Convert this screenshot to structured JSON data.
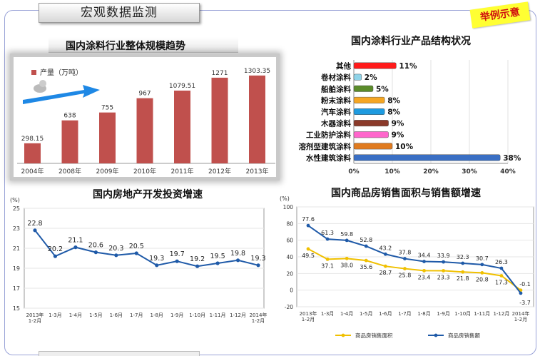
{
  "header": {
    "title": "宏观数据监测",
    "example_tag": "举例示意"
  },
  "colors": {
    "bar_red": "#c0504d",
    "line_blue": "#1f5aa8",
    "line_yellow": "#f0c000",
    "arrow_blue": "#1e88e5"
  },
  "chart_data": [
    {
      "type": "bar",
      "title": "国内涂料行业整体规模趋势",
      "legend": "产量（万吨）",
      "categories": [
        "2004年",
        "2008年",
        "2009年",
        "2010年",
        "2011年",
        "2012年",
        "2013年"
      ],
      "values": [
        298.15,
        638,
        755,
        967,
        1079.51,
        1271,
        1303.35
      ],
      "value_labels": [
        "298.15",
        "638",
        "755",
        "967",
        "1079.51",
        "1271",
        "1303.35"
      ],
      "ylim": [
        0,
        1450
      ]
    },
    {
      "type": "bar",
      "orientation": "horizontal",
      "title": "国内涂料行业产品结构状况",
      "categories": [
        "其他",
        "卷材涂料",
        "船舶涂料",
        "粉末涂料",
        "汽车涂料",
        "木器涂料",
        "工业防护涂料",
        "溶剂型建筑涂料",
        "水性建筑涂料"
      ],
      "values": [
        11,
        2,
        5,
        8,
        8,
        9,
        9,
        10,
        38
      ],
      "value_labels": [
        "11%",
        "2%",
        "5%",
        "8%",
        "8%",
        "9%",
        "9%",
        "10%",
        "38%"
      ],
      "colors": [
        "#ff1a1a",
        "#8fd3e8",
        "#5b8c2a",
        "#f5a623",
        "#1e9be0",
        "#8b3a2a",
        "#ff66cc",
        "#e07b20",
        "#3a6fc4"
      ],
      "xlim": [
        0,
        40
      ],
      "xticks": [
        "0%",
        "10%",
        "20%",
        "30%",
        "40%"
      ]
    },
    {
      "type": "line",
      "title": "国内房地产开发投资增速",
      "unit": "(%)",
      "categories": [
        "2013年\n1-2月",
        "1-3月",
        "1-4月",
        "1-5月",
        "1-6月",
        "1-7月",
        "1-8月",
        "1-9月",
        "1-10月",
        "1-11月",
        "1-12月",
        "2014年\n1-2月"
      ],
      "values": [
        22.8,
        20.2,
        21.1,
        20.6,
        20.3,
        20.5,
        19.3,
        19.7,
        19.2,
        19.5,
        19.8,
        19.3
      ],
      "value_labels": [
        "22.8",
        "20.2",
        "21.1",
        "20.6",
        "20.3",
        "20.5",
        "19.3",
        "19.7",
        "19.2",
        "19.5",
        "19.8",
        "19.3"
      ],
      "ylim": [
        15,
        25
      ],
      "yticks": [
        "15",
        "17",
        "19",
        "21",
        "23",
        "25"
      ]
    },
    {
      "type": "line",
      "title": "国内商品房销售面积与销售额增速",
      "unit": "(%)",
      "categories": [
        "2013年\n1-2月",
        "1-3月",
        "1-4月",
        "1-5月",
        "1-6月",
        "1-7月",
        "1-8月",
        "1-9月",
        "1-10月",
        "1-11月",
        "1-12月",
        "2014年\n1-2月"
      ],
      "series": [
        {
          "name": "商品房销售面积",
          "values": [
            49.5,
            37.1,
            38.0,
            35.6,
            28.7,
            25.8,
            23.4,
            23.3,
            21.8,
            20.8,
            17.3,
            -0.1
          ],
          "value_labels": [
            "49.5",
            "37.1",
            "38.0",
            "35.6",
            "28.7",
            "25.8",
            "23.4",
            "23.3",
            "21.8",
            "20.8",
            "17.3",
            "-0.1"
          ]
        },
        {
          "name": "商品房销售额",
          "values": [
            77.6,
            61.3,
            59.8,
            52.8,
            43.2,
            37.8,
            34.4,
            33.9,
            32.3,
            30.7,
            26.3,
            -3.7
          ],
          "value_labels": [
            "77.6",
            "61.3",
            "59.8",
            "52.8",
            "43.2",
            "37.8",
            "34.4",
            "33.9",
            "32.3",
            "30.7",
            "26.3",
            "-3.7"
          ]
        }
      ],
      "ylim": [
        -20,
        100
      ],
      "yticks": [
        "-20",
        "0",
        "20",
        "40",
        "60",
        "80",
        "100"
      ]
    }
  ]
}
